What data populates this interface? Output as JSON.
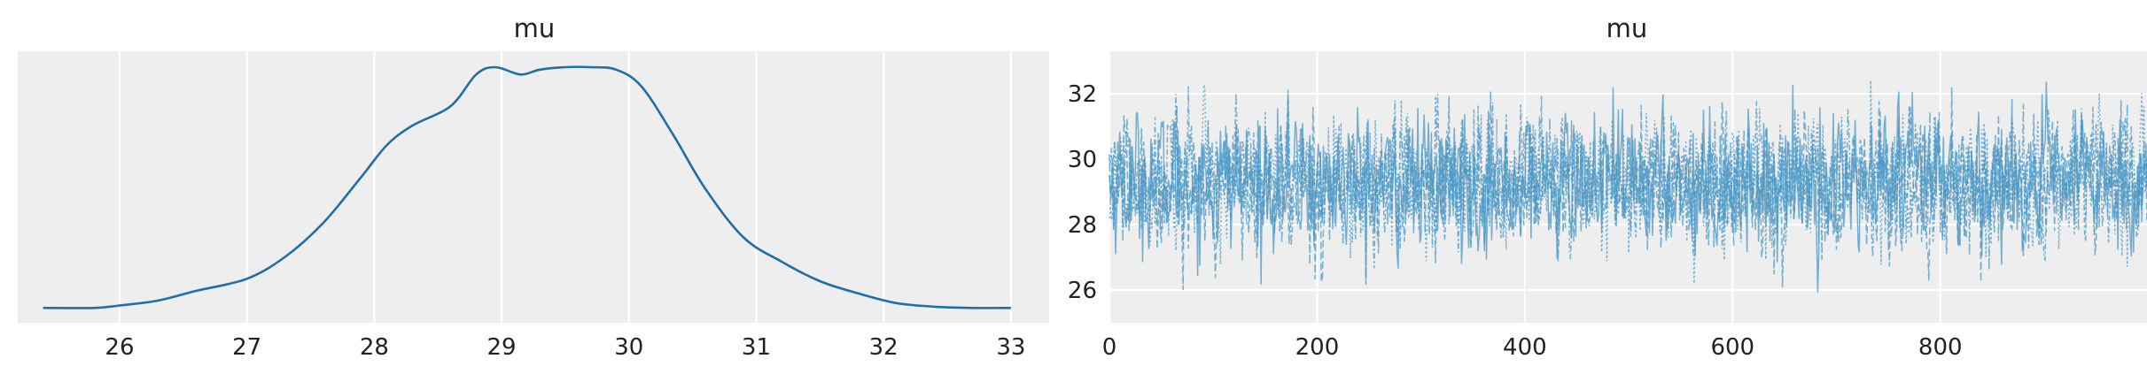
{
  "colors": {
    "line": "#1f6fa8",
    "trace": "#4a97c4",
    "panel": "#eeeeee"
  },
  "chart_data": [
    {
      "type": "line",
      "title": "mu",
      "xlabel": "",
      "ylabel": "",
      "xlim": [
        25.2,
        33.3
      ],
      "ylim": [
        0,
        1.0
      ],
      "xticks": [
        26,
        27,
        28,
        29,
        30,
        31,
        32,
        33
      ],
      "yticks": [],
      "grid": true,
      "series": [
        {
          "x": [
            25.4,
            25.8,
            26.0,
            26.3,
            26.6,
            27.0,
            27.3,
            27.6,
            27.9,
            28.1,
            28.3,
            28.6,
            28.8,
            28.95,
            29.15,
            29.3,
            29.5,
            29.7,
            29.9,
            30.1,
            30.35,
            30.6,
            30.9,
            31.2,
            31.5,
            31.8,
            32.1,
            32.4,
            32.7,
            33.0
          ],
          "y": [
            0.01,
            0.01,
            0.02,
            0.04,
            0.08,
            0.13,
            0.22,
            0.36,
            0.55,
            0.68,
            0.76,
            0.84,
            0.97,
            1.0,
            0.97,
            0.99,
            1.0,
            1.0,
            0.99,
            0.92,
            0.72,
            0.5,
            0.3,
            0.2,
            0.12,
            0.07,
            0.03,
            0.015,
            0.01,
            0.01
          ]
        }
      ]
    },
    {
      "type": "line",
      "title": "mu",
      "xlabel": "",
      "ylabel": "",
      "xlim": [
        0,
        999
      ],
      "ylim": [
        25.0,
        33.3
      ],
      "xticks": [
        0,
        200,
        400,
        600,
        800
      ],
      "yticks": [
        26,
        28,
        30,
        32
      ],
      "grid": true,
      "series": [
        {
          "mean": 29.3,
          "sd": 1.05,
          "min": 25.4,
          "max": 32.9,
          "n_draws": 1000
        },
        {
          "mean": 29.2,
          "sd": 1.0,
          "min": 26.0,
          "max": 32.8,
          "n_draws": 1000
        },
        {
          "mean": 29.3,
          "sd": 1.0,
          "min": 26.2,
          "max": 32.6,
          "n_draws": 1000
        },
        {
          "mean": 29.3,
          "sd": 1.0,
          "min": 26.1,
          "max": 32.5,
          "n_draws": 1000
        }
      ]
    }
  ]
}
